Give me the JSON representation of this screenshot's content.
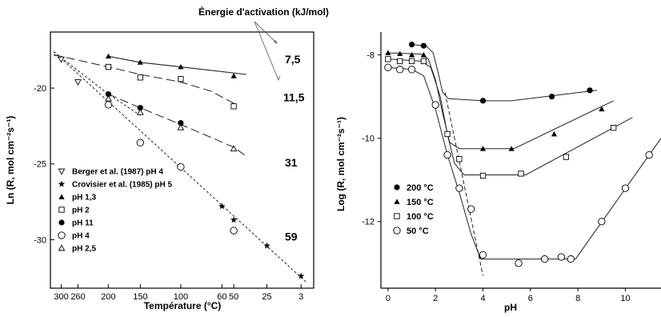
{
  "activation_title": "Énergie d'activation (kJ/mol)",
  "chart_data": [
    {
      "type": "scatter",
      "xlabel": "Température (°C)",
      "ylabel": "Ln (R, mol cm⁻²s⁻¹)",
      "x_ticks": [
        {
          "label": "300",
          "inv_T": 0.001745
        },
        {
          "label": "260",
          "inv_T": 0.001876
        },
        {
          "label": "200",
          "inv_T": 0.002113
        },
        {
          "label": "150",
          "inv_T": 0.002364
        },
        {
          "label": "100",
          "inv_T": 0.00268
        },
        {
          "label": "60",
          "inv_T": 0.003002
        },
        {
          "label": "50",
          "inv_T": 0.003095
        },
        {
          "label": "25",
          "inv_T": 0.003354
        },
        {
          "label": "3",
          "inv_T": 0.003621
        }
      ],
      "y_ticks": [
        {
          "label": "-20",
          "value": -20
        },
        {
          "label": "-25",
          "value": -25
        },
        {
          "label": "-30",
          "value": -30
        }
      ],
      "ylim": [
        -33.2,
        -16.3
      ],
      "series": [
        {
          "name": "Berger et al. (1987) pH 4",
          "marker": "tri-down-open",
          "points": [
            {
              "t": 300,
              "y": -18.1
            },
            {
              "t": 260,
              "y": -19.6
            }
          ]
        },
        {
          "name": "Crovisier et al. (1985) pH 5",
          "marker": "star",
          "points": [
            {
              "t": 60,
              "y": -27.8
            },
            {
              "t": 50,
              "y": -28.7
            },
            {
              "t": 25,
              "y": -30.4
            },
            {
              "t": 3,
              "y": -32.4
            }
          ]
        },
        {
          "name": "pH 1,3",
          "marker": "tri-up-filled",
          "points": [
            {
              "t": 200,
              "y": -17.9
            },
            {
              "t": 150,
              "y": -18.3
            },
            {
              "t": 100,
              "y": -18.6
            },
            {
              "t": 50,
              "y": -19.2
            }
          ]
        },
        {
          "name": "pH 2",
          "marker": "square-open",
          "points": [
            {
              "t": 200,
              "y": -18.6
            },
            {
              "t": 150,
              "y": -19.3
            },
            {
              "t": 100,
              "y": -19.4
            },
            {
              "t": 50,
              "y": -21.2
            }
          ]
        },
        {
          "name": "pH 11",
          "marker": "circle-filled",
          "points": [
            {
              "t": 200,
              "y": -20.4
            },
            {
              "t": 150,
              "y": -21.3
            },
            {
              "t": 100,
              "y": -22.3
            }
          ]
        },
        {
          "name": "pH 4",
          "marker": "circle-open",
          "points": [
            {
              "t": 200,
              "y": -21.1
            },
            {
              "t": 150,
              "y": -23.6
            },
            {
              "t": 100,
              "y": -25.2
            },
            {
              "t": 50,
              "y": -29.4
            }
          ]
        },
        {
          "name": "pH 2,5",
          "marker": "tri-up-open",
          "points": [
            {
              "t": 200,
              "y": -20.7
            },
            {
              "t": 150,
              "y": -21.6
            },
            {
              "t": 100,
              "y": -22.6
            },
            {
              "t": 50,
              "y": -24.0
            }
          ]
        }
      ],
      "fit_lines": [
        {
          "style": "solid",
          "points": [
            {
              "t": 200,
              "y": -17.9
            },
            {
              "t": 150,
              "y": -18.3
            },
            {
              "t": 100,
              "y": -18.6
            },
            {
              "t": 40,
              "y": -19.1
            }
          ]
        },
        {
          "style": "long-dash",
          "points": [
            {
              "t": 320,
              "y": -17.8
            },
            {
              "t": 200,
              "y": -18.6
            },
            {
              "t": 150,
              "y": -19.1
            },
            {
              "t": 100,
              "y": -19.6
            },
            {
              "t": 70,
              "y": -20.2
            },
            {
              "t": 50,
              "y": -21.0
            }
          ]
        },
        {
          "style": "long-dash",
          "points": [
            {
              "t": 200,
              "y": -20.4
            },
            {
              "t": 150,
              "y": -21.3
            },
            {
              "t": 100,
              "y": -22.4
            },
            {
              "t": 50,
              "y": -23.9
            },
            {
              "t": 40,
              "y": -24.5
            }
          ]
        },
        {
          "style": "short-dash",
          "points": [
            {
              "t": 320,
              "y": -17.8
            },
            {
              "t": 300,
              "y": -18.1
            }
          ]
        },
        {
          "style": "short-dash",
          "points": [
            {
              "t": 320,
              "y": -17.6
            },
            {
              "t": 200,
              "y": -20.4
            },
            {
              "t": 150,
              "y": -21.8
            }
          ]
        },
        {
          "style": "short-dash",
          "points": [
            {
              "t": 320,
              "y": -17.6
            },
            {
              "t": 0,
              "y": -32.8
            }
          ]
        }
      ],
      "activation_labels": [
        {
          "text": "7,5",
          "at_y": -18.1
        },
        {
          "text": "11,5",
          "at_y": -20.6
        },
        {
          "text": "31",
          "at_y": -24.9
        },
        {
          "text": "59",
          "at_y": -29.8
        }
      ]
    },
    {
      "type": "scatter",
      "xlabel": "pH",
      "ylabel": "Log (R, mol cm⁻²s⁻¹)",
      "xlim": [
        -0.3,
        11.5
      ],
      "ylim": [
        -13.6,
        -7.45
      ],
      "x_ticks": [
        0,
        2,
        4,
        6,
        8,
        10
      ],
      "y_ticks": [
        {
          "label": "-8",
          "value": -8
        },
        {
          "label": "-10",
          "value": -10
        },
        {
          "label": "-12",
          "value": -12
        }
      ],
      "series": [
        {
          "name": "200 °C",
          "marker": "circle-filled",
          "points": [
            [
              1.0,
              -7.75
            ],
            [
              1.5,
              -7.78
            ],
            [
              4.0,
              -9.1
            ],
            [
              6.9,
              -9.0
            ],
            [
              8.5,
              -8.85
            ]
          ]
        },
        {
          "name": "150 °C",
          "marker": "tri-up-filled",
          "points": [
            [
              0.0,
              -7.95
            ],
            [
              0.5,
              -7.97
            ],
            [
              1.0,
              -8.0
            ],
            [
              1.5,
              -8.0
            ],
            [
              4.0,
              -10.25
            ],
            [
              5.2,
              -10.25
            ],
            [
              7.0,
              -9.9
            ],
            [
              9.0,
              -9.3
            ]
          ]
        },
        {
          "name": "100 °C",
          "marker": "square-open",
          "points": [
            [
              0.0,
              -8.1
            ],
            [
              0.5,
              -8.15
            ],
            [
              1.0,
              -8.15
            ],
            [
              1.5,
              -8.15
            ],
            [
              2.5,
              -9.9
            ],
            [
              3.0,
              -10.5
            ],
            [
              4.0,
              -10.9
            ],
            [
              5.6,
              -10.85
            ],
            [
              7.5,
              -10.45
            ],
            [
              9.5,
              -9.75
            ]
          ]
        },
        {
          "name": "50 °C",
          "marker": "circle-open",
          "points": [
            [
              0.0,
              -8.3
            ],
            [
              0.5,
              -8.35
            ],
            [
              1.0,
              -8.35
            ],
            [
              2.0,
              -9.2
            ],
            [
              2.5,
              -10.4
            ],
            [
              3.0,
              -11.2
            ],
            [
              3.5,
              -11.7
            ],
            [
              4.0,
              -12.8
            ],
            [
              5.5,
              -13.0
            ],
            [
              6.6,
              -12.9
            ],
            [
              7.3,
              -12.85
            ],
            [
              7.7,
              -12.9
            ],
            [
              9.0,
              -12.0
            ],
            [
              10.0,
              -11.2
            ],
            [
              11.0,
              -10.4
            ]
          ]
        }
      ],
      "fit_lines": [
        {
          "style": "solid",
          "points": [
            [
              1.0,
              -7.75
            ],
            [
              1.6,
              -7.78
            ],
            [
              1.9,
              -7.95
            ],
            [
              2.1,
              -8.4
            ],
            [
              2.3,
              -8.9
            ],
            [
              2.55,
              -9.05
            ],
            [
              4.0,
              -9.1
            ],
            [
              5.2,
              -9.1
            ],
            [
              8.8,
              -8.85
            ]
          ]
        },
        {
          "style": "solid",
          "points": [
            [
              0.0,
              -7.95
            ],
            [
              1.4,
              -7.98
            ],
            [
              1.7,
              -8.1
            ],
            [
              2.0,
              -8.6
            ],
            [
              2.3,
              -9.4
            ],
            [
              2.6,
              -10.1
            ],
            [
              3.0,
              -10.25
            ],
            [
              5.3,
              -10.25
            ],
            [
              9.5,
              -9.1
            ]
          ]
        },
        {
          "style": "solid",
          "points": [
            [
              0.0,
              -8.1
            ],
            [
              1.4,
              -8.15
            ],
            [
              1.8,
              -8.3
            ],
            [
              2.2,
              -9.0
            ],
            [
              2.5,
              -9.9
            ],
            [
              2.8,
              -10.6
            ],
            [
              3.2,
              -10.88
            ],
            [
              5.8,
              -10.88
            ],
            [
              10.3,
              -9.5
            ]
          ]
        },
        {
          "style": "solid",
          "points": [
            [
              0.0,
              -8.3
            ],
            [
              1.0,
              -8.35
            ],
            [
              1.5,
              -8.5
            ],
            [
              2.0,
              -9.3
            ],
            [
              2.5,
              -10.4
            ],
            [
              3.0,
              -11.3
            ],
            [
              3.5,
              -12.3
            ],
            [
              3.9,
              -12.9
            ],
            [
              7.9,
              -12.9
            ],
            [
              11.5,
              -10.0
            ]
          ]
        },
        {
          "style": "dash",
          "points": [
            [
              2.4,
              -8.9
            ],
            [
              4.0,
              -13.3
            ]
          ]
        }
      ]
    }
  ]
}
